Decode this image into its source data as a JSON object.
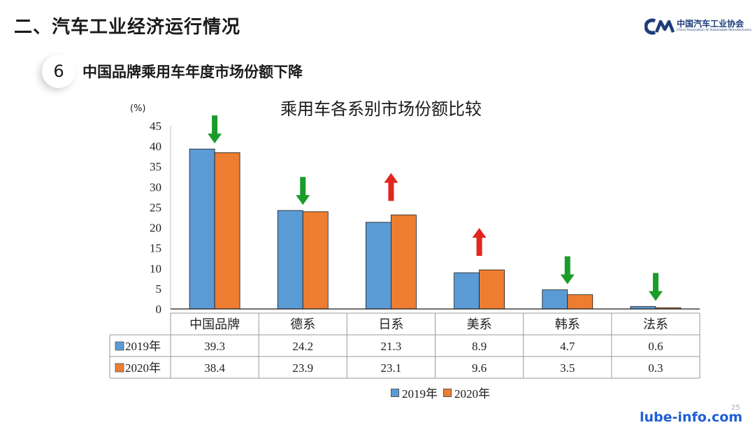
{
  "header": {
    "section_title": "二、汽车工业经济运行情况",
    "logo_cn": "中国汽车工业协会",
    "logo_en": "China Association of Automobile Manufacturers"
  },
  "subheader": {
    "number": "6",
    "title": "中国品牌乘用车年度市场份额下降"
  },
  "colors": {
    "series_2019": "#5b9bd5",
    "series_2020": "#ed7d31",
    "arrow_down": "#1a9c2a",
    "arrow_up": "#e0261e",
    "brand": "#1d3d7a"
  },
  "chart_data": {
    "type": "bar",
    "title": "乘用车各系别市场份额比较",
    "unit": "(%)",
    "ylim": [
      0,
      45
    ],
    "ytick_step": 5,
    "categories": [
      "中国品牌",
      "德系",
      "日系",
      "美系",
      "韩系",
      "法系"
    ],
    "series": [
      {
        "name": "2019年",
        "values": [
          39.3,
          24.2,
          21.3,
          8.9,
          4.7,
          0.6
        ]
      },
      {
        "name": "2020年",
        "values": [
          38.4,
          23.9,
          23.1,
          9.6,
          3.5,
          0.3
        ]
      }
    ],
    "trend_arrows": [
      "down",
      "down",
      "up",
      "up",
      "down",
      "down"
    ],
    "data_table": true,
    "legend_position": "bottom"
  },
  "footer": {
    "page_number": "25",
    "watermark": "lube-info.com"
  }
}
